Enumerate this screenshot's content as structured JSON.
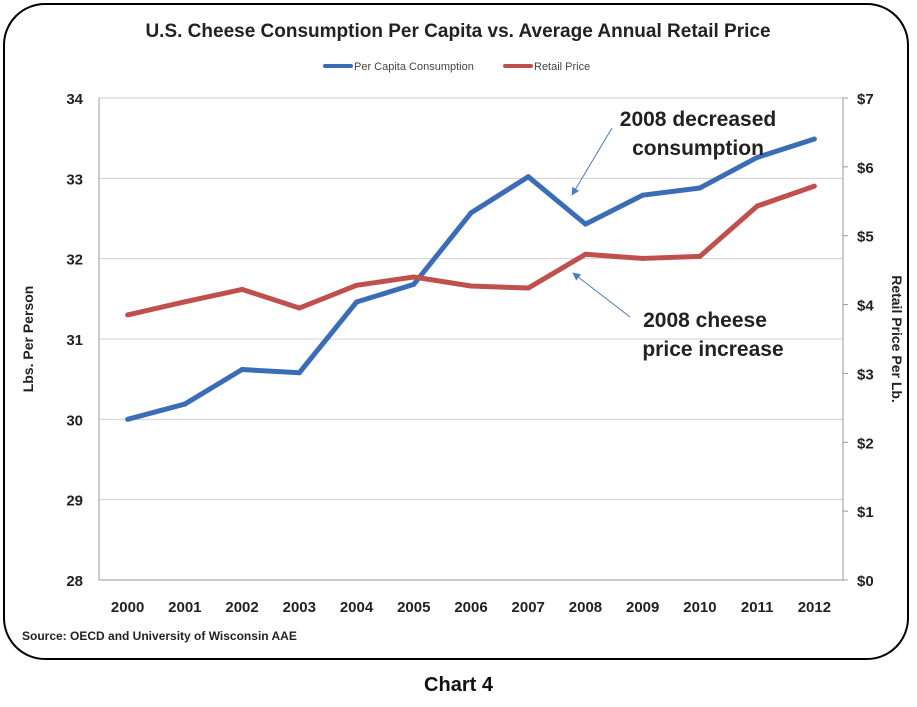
{
  "chart_data": {
    "type": "line",
    "title": "U.S. Cheese Consumption Per Capita vs. Average Annual Retail Price",
    "categories": [
      "2000",
      "2001",
      "2002",
      "2003",
      "2004",
      "2005",
      "2006",
      "2007",
      "2008",
      "2009",
      "2010",
      "2011",
      "2012"
    ],
    "series": [
      {
        "name": "Per Capita Consumption",
        "axis": "left",
        "color": "#3a6db5",
        "values": [
          30.0,
          30.19,
          30.62,
          30.58,
          31.46,
          31.68,
          32.57,
          33.02,
          32.43,
          32.79,
          32.88,
          33.26,
          33.49
        ]
      },
      {
        "name": "Retail Price",
        "axis": "right",
        "color": "#c0504d",
        "values": [
          3.85,
          4.04,
          4.22,
          3.95,
          4.28,
          4.4,
          4.27,
          4.24,
          4.73,
          4.67,
          4.7,
          5.43,
          5.72
        ]
      }
    ],
    "ylabel": "Lbs. Per Person",
    "ylim": [
      28,
      34
    ],
    "yticks": [
      "28",
      "29",
      "30",
      "31",
      "32",
      "33",
      "34"
    ],
    "y2label": "Retail Price Per Lb.",
    "y2lim": [
      0,
      7
    ],
    "y2ticks": [
      "$0",
      "$1",
      "$2",
      "$3",
      "$4",
      "$5",
      "$6",
      "$7"
    ],
    "grid": true,
    "legend": "top",
    "source": "Source:  OECD and University of Wisconsin AAE",
    "annotations": [
      {
        "lines": [
          "2008 decreased",
          "consumption"
        ],
        "target_series": "Per Capita Consumption",
        "target_x": "2008"
      },
      {
        "lines": [
          "2008 cheese",
          "price increase"
        ],
        "target_series": "Retail Price",
        "target_x": "2008"
      }
    ]
  },
  "caption": "Chart 4"
}
